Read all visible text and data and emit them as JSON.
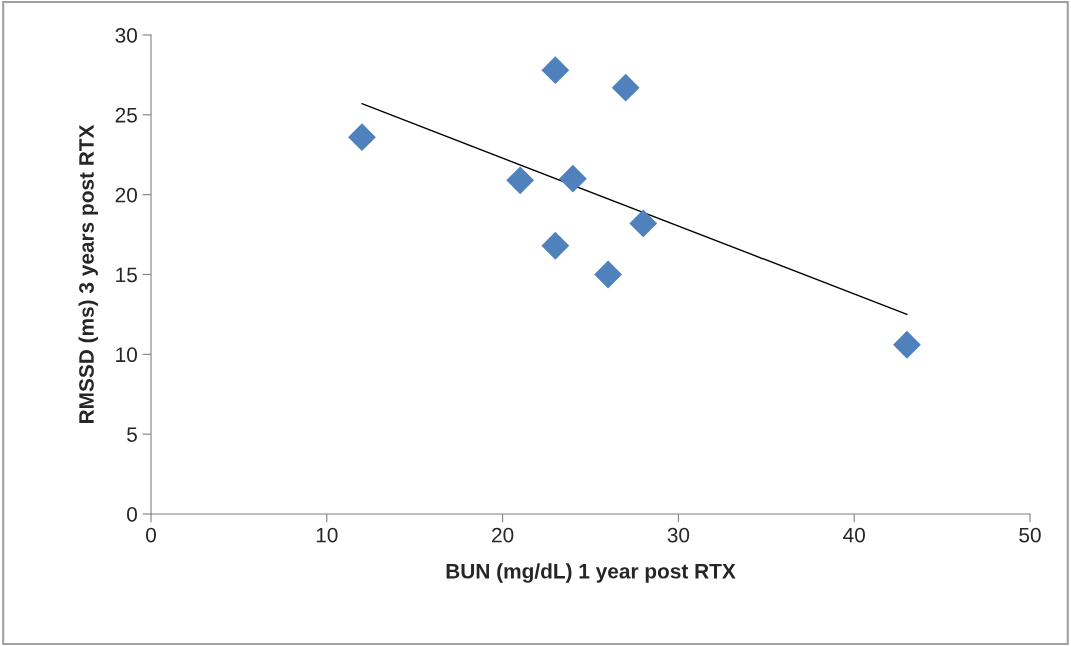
{
  "chart_data": {
    "type": "scatter",
    "xlabel": "BUN (mg/dL) 1 year post RTX",
    "ylabel": "RMSSD (ms) 3 years post RTX",
    "series": [
      {
        "color": "#4f81bd",
        "marker": "diamond",
        "x": [
          12,
          23,
          27,
          21,
          24,
          28,
          23,
          26,
          43
        ],
        "values": [
          23.6,
          27.8,
          26.7,
          20.9,
          21.0,
          18.2,
          16.8,
          15.0,
          10.6
        ]
      },
      {
        "type": "line",
        "color": "#000000",
        "marker": "none",
        "x": [
          12,
          43
        ],
        "values": [
          25.7,
          12.5
        ]
      }
    ],
    "xlim": [
      0,
      50
    ],
    "xticks": [
      0,
      10,
      20,
      30,
      40,
      50
    ],
    "ylim": [
      0,
      30
    ],
    "yticks": [
      0,
      5,
      10,
      15,
      20,
      25,
      30
    ],
    "grid": false,
    "legend": false
  }
}
